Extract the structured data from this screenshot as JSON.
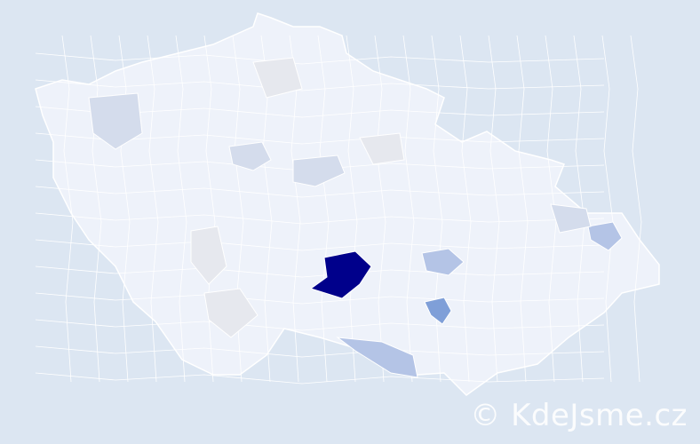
{
  "watermark": "© KdeJsme.cz",
  "colors": {
    "background": "#dce6f2",
    "base_region": "#eef2fa",
    "region_border": "#ffffff",
    "highest": "#00008b",
    "high": "#7f9fd8",
    "medium": "#b4c4e6",
    "low": "#d4dcec",
    "neutral": "#e6e8ee"
  },
  "regions": [
    {
      "level": "highest",
      "color": "#00008b"
    },
    {
      "level": "high",
      "color": "#7f9fd8"
    },
    {
      "level": "medium",
      "color": "#b4c4e6"
    },
    {
      "level": "medium",
      "color": "#b4c4e6"
    },
    {
      "level": "medium",
      "color": "#b4c4e6"
    },
    {
      "level": "low",
      "color": "#d4dcec"
    },
    {
      "level": "low",
      "color": "#d4dcec"
    },
    {
      "level": "low",
      "color": "#d4dcec"
    },
    {
      "level": "low",
      "color": "#d4dcec"
    },
    {
      "level": "neutral",
      "color": "#e6e8ee"
    },
    {
      "level": "neutral",
      "color": "#e6e8ee"
    },
    {
      "level": "neutral",
      "color": "#e6e8ee"
    },
    {
      "level": "neutral",
      "color": "#e6e8ee"
    }
  ]
}
